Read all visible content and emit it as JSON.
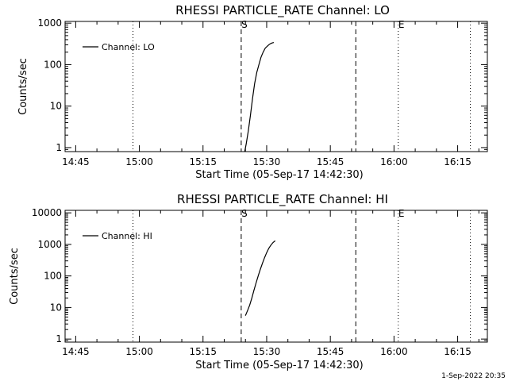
{
  "footer": "1-Sep-2022 20:35",
  "chart_data": [
    {
      "type": "line",
      "title": "RHESSI PARTICLE_RATE Channel: LO",
      "xlabel": "Start Time (05-Sep-17 14:42:30)",
      "ylabel": "Counts/sec",
      "y_scale": "log",
      "ylim": [
        0.8,
        1100
      ],
      "y_ticks": [
        {
          "v": 1,
          "label": "1"
        },
        {
          "v": 10,
          "label": "10"
        },
        {
          "v": 100,
          "label": "100"
        },
        {
          "v": 1000,
          "label": "1000"
        }
      ],
      "x_ticks": [
        "14:45",
        "15:00",
        "15:15",
        "15:30",
        "15:45",
        "16:00",
        "16:15"
      ],
      "legend": {
        "label": "Channel: LO",
        "position": "top-left"
      },
      "markers": [
        {
          "x": "15:24",
          "label": "S"
        },
        {
          "x": "16:01",
          "label": "E"
        }
      ],
      "series": [
        {
          "name": "Channel: LO",
          "x": [
            "15:24:50",
            "15:25:10",
            "15:25:40",
            "15:26:10",
            "15:26:40",
            "15:27:10",
            "15:27:40",
            "15:28:10",
            "15:28:40",
            "15:29:10",
            "15:29:40",
            "15:30:10",
            "15:30:40",
            "15:31:10",
            "15:31:40"
          ],
          "y": [
            0.8,
            1.2,
            2.5,
            6,
            15,
            35,
            65,
            100,
            150,
            200,
            250,
            280,
            310,
            330,
            340
          ]
        }
      ]
    },
    {
      "type": "line",
      "title": "RHESSI PARTICLE_RATE Channel: HI",
      "xlabel": "Start Time (05-Sep-17 14:42:30)",
      "ylabel": "Counts/sec",
      "y_scale": "log",
      "ylim": [
        0.8,
        12000
      ],
      "y_ticks": [
        {
          "v": 1,
          "label": "1"
        },
        {
          "v": 10,
          "label": "10"
        },
        {
          "v": 100,
          "label": "100"
        },
        {
          "v": 1000,
          "label": "1000"
        },
        {
          "v": 10000,
          "label": "10000"
        }
      ],
      "x_ticks": [
        "14:45",
        "15:00",
        "15:15",
        "15:30",
        "15:45",
        "16:00",
        "16:15"
      ],
      "legend": {
        "label": "Channel: HI",
        "position": "top-left"
      },
      "markers": [
        {
          "x": "15:24",
          "label": "S"
        },
        {
          "x": "16:01",
          "label": "E"
        }
      ],
      "series": [
        {
          "name": "Channel: HI",
          "x": [
            "15:25:00",
            "15:25:30",
            "15:26:00",
            "15:26:30",
            "15:27:00",
            "15:27:30",
            "15:28:00",
            "15:28:30",
            "15:29:00",
            "15:29:30",
            "15:30:00",
            "15:30:30",
            "15:31:00",
            "15:31:30",
            "15:32:00"
          ],
          "y": [
            5.5,
            8,
            12,
            20,
            35,
            60,
            100,
            160,
            250,
            380,
            550,
            750,
            950,
            1150,
            1300
          ]
        }
      ]
    }
  ]
}
